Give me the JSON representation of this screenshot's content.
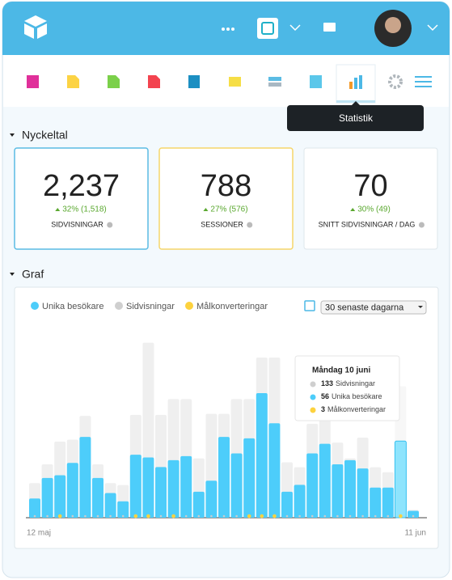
{
  "toolbar": {
    "tooltip": "Statistik"
  },
  "kpis": {
    "title": "Nyckeltal",
    "cards": [
      {
        "value": "2,237",
        "change": "32% (1,518)",
        "label": "SIDVISNINGAR"
      },
      {
        "value": "788",
        "change": "27% (576)",
        "label": "SESSIONER"
      },
      {
        "value": "70",
        "change": "30% (49)",
        "label": "SNITT SIDVISNINGAR / DAG"
      }
    ]
  },
  "graph": {
    "title": "Graf",
    "range_select": "30 senaste dagarna",
    "tooltip_title": "Måndag 10 juni"
  },
  "chart_data": {
    "type": "bar",
    "categories": [
      "12 maj",
      null,
      null,
      null,
      null,
      null,
      null,
      null,
      null,
      null,
      null,
      null,
      null,
      null,
      null,
      null,
      null,
      null,
      null,
      null,
      null,
      null,
      null,
      null,
      null,
      null,
      null,
      null,
      null,
      null,
      "11 jun"
    ],
    "ylim": [
      0,
      180
    ],
    "y2lim": [
      0,
      130
    ],
    "series": [
      {
        "name": "Unika besökare",
        "color": "#4dcdfa",
        "axis": "y2",
        "values": [
          14,
          29,
          31,
          40,
          59,
          29,
          18,
          12,
          46,
          44,
          37,
          42,
          45,
          19,
          27,
          59,
          47,
          58,
          91,
          69,
          19,
          24,
          47,
          54,
          39,
          42,
          36,
          22,
          22,
          56,
          5
        ]
      },
      {
        "name": "Sidvisningar",
        "color": "#cfcfcf",
        "values": [
          35,
          54,
          77,
          79,
          103,
          54,
          35,
          33,
          104,
          177,
          104,
          120,
          120,
          60,
          105,
          105,
          120,
          120,
          162,
          162,
          56,
          51,
          95,
          100,
          76,
          60,
          81,
          51,
          46,
          133,
          8
        ]
      },
      {
        "name": "Målkonverteringar",
        "color": "#fdd23e",
        "values": [
          0,
          0,
          1,
          0,
          0,
          0,
          0,
          0,
          1,
          1,
          0,
          1,
          0,
          0,
          0,
          0,
          0,
          1,
          1,
          1,
          0,
          0,
          0,
          0,
          0,
          0,
          0,
          0,
          0,
          3,
          0
        ]
      }
    ]
  }
}
